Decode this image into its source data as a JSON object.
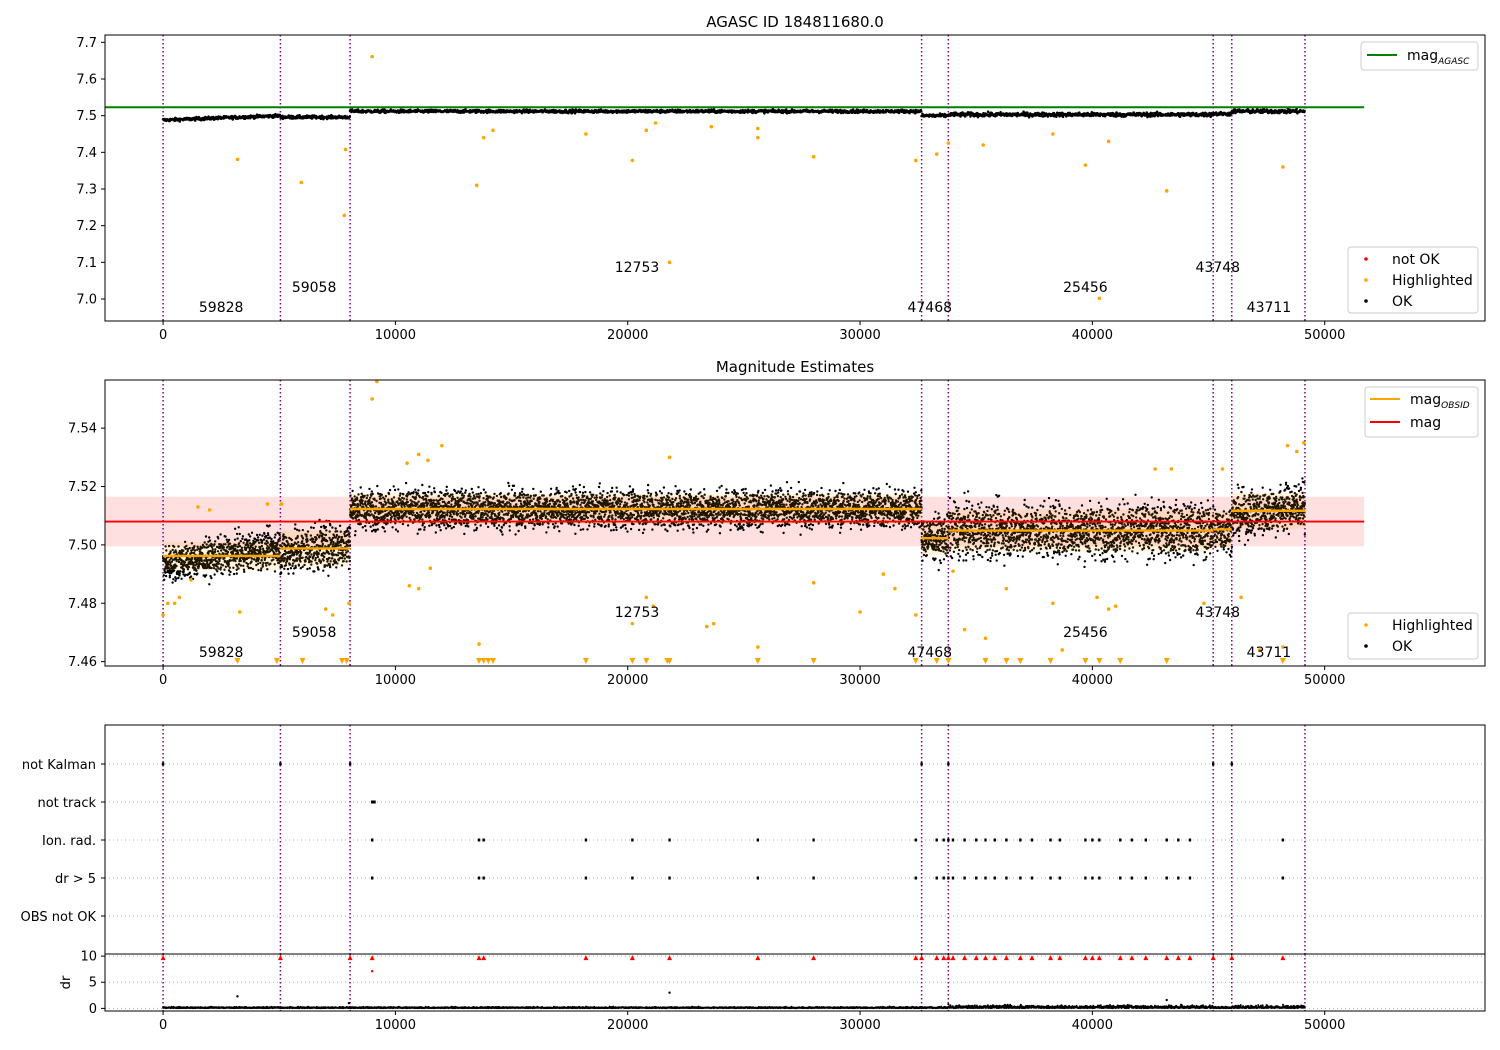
{
  "chart_data": [
    {
      "type": "scatter",
      "title": "AGASC ID 184811680.0",
      "xlim": [
        -2500,
        56900
      ],
      "ylim": [
        6.94,
        7.72
      ],
      "x_ticks": [
        0,
        10000,
        20000,
        30000,
        40000,
        50000
      ],
      "y_ticks": [
        7.0,
        7.1,
        7.2,
        7.3,
        7.4,
        7.5,
        7.6,
        7.7
      ],
      "y_tick_labels": [
        "7.0",
        "7.1",
        "7.2",
        "7.3",
        "7.4",
        "7.5",
        "7.6",
        "7.7"
      ],
      "reference_line": {
        "label": "mag",
        "subscript": "AGASC",
        "value": 7.523,
        "color": "#008000",
        "x_range": [
          -2500,
          51700
        ]
      },
      "legend_top": [
        {
          "label": "mag",
          "subscript": "AGASC",
          "color": "#008000",
          "kind": "line"
        }
      ],
      "legend_bottom": [
        {
          "label": "not OK",
          "color": "#ff0000",
          "kind": "point"
        },
        {
          "label": "Highlighted",
          "color": "#ffa500",
          "kind": "point"
        },
        {
          "label": "OK",
          "color": "#000000",
          "kind": "point"
        }
      ],
      "ok_bands": [
        {
          "x_start": 0,
          "x_end": 5050,
          "y_start": 7.488,
          "y_end": 7.5,
          "spread": 0.006
        },
        {
          "x_start": 5050,
          "x_end": 8050,
          "y_start": 7.496,
          "y_end": 7.496,
          "spread": 0.006
        },
        {
          "x_start": 8050,
          "x_end": 32650,
          "y_start": 7.512,
          "y_end": 7.512,
          "spread": 0.006
        },
        {
          "x_start": 32650,
          "x_end": 33800,
          "y_start": 7.5,
          "y_end": 7.5,
          "spread": 0.007
        },
        {
          "x_start": 33800,
          "x_end": 45200,
          "y_start": 7.503,
          "y_end": 7.503,
          "spread": 0.008
        },
        {
          "x_start": 45200,
          "x_end": 46000,
          "y_start": 7.505,
          "y_end": 7.505,
          "spread": 0.007
        },
        {
          "x_start": 46000,
          "x_end": 49150,
          "y_start": 7.512,
          "y_end": 7.512,
          "spread": 0.008
        }
      ],
      "highlighted_points": [
        [
          3200,
          7.381
        ],
        [
          5950,
          7.318
        ],
        [
          7800,
          7.228
        ],
        [
          7850,
          7.408
        ],
        [
          9000,
          7.661
        ],
        [
          13500,
          7.31
        ],
        [
          13800,
          7.44
        ],
        [
          14200,
          7.46
        ],
        [
          18200,
          7.45
        ],
        [
          20200,
          7.378
        ],
        [
          20800,
          7.46
        ],
        [
          21200,
          7.48
        ],
        [
          21800,
          7.1
        ],
        [
          23600,
          7.47
        ],
        [
          25600,
          7.44
        ],
        [
          25600,
          7.465
        ],
        [
          28000,
          7.388
        ],
        [
          32400,
          7.378
        ],
        [
          33300,
          7.395
        ],
        [
          33800,
          7.425
        ],
        [
          35300,
          7.42
        ],
        [
          38300,
          7.45
        ],
        [
          39700,
          7.365
        ],
        [
          40300,
          7.002
        ],
        [
          40700,
          7.43
        ],
        [
          43200,
          7.295
        ],
        [
          48200,
          7.36
        ]
      ],
      "obsid_labels": [
        {
          "text": "59828",
          "x": 2500,
          "level": 2
        },
        {
          "text": "59058",
          "x": 6500,
          "level": 1
        },
        {
          "text": "12753",
          "x": 20400,
          "level": 0
        },
        {
          "text": "47468",
          "x": 33000,
          "level": 2
        },
        {
          "text": "25456",
          "x": 39700,
          "level": 1
        },
        {
          "text": "43748",
          "x": 45400,
          "level": 0
        },
        {
          "text": "43711",
          "x": 47600,
          "level": 2
        }
      ]
    },
    {
      "type": "scatter",
      "title": "Magnitude Estimates",
      "xlim": [
        -2500,
        56900
      ],
      "ylim": [
        7.4585,
        7.5565
      ],
      "x_ticks": [
        0,
        10000,
        20000,
        30000,
        40000,
        50000
      ],
      "y_ticks": [
        7.46,
        7.48,
        7.5,
        7.52,
        7.54
      ],
      "y_tick_labels": [
        "7.46",
        "7.48",
        "7.50",
        "7.52",
        "7.54"
      ],
      "mag_line": {
        "label": "mag",
        "value": 7.508,
        "band": [
          7.4995,
          7.5165
        ],
        "color": "#ff0000",
        "x_range": [
          -2500,
          51700
        ]
      },
      "legend_top": [
        {
          "label": "mag",
          "subscript": "OBSID",
          "color": "#ffa500",
          "kind": "line"
        },
        {
          "label": "mag",
          "color": "#ff0000",
          "kind": "line"
        }
      ],
      "legend_bottom": [
        {
          "label": "Highlighted",
          "color": "#ffa500",
          "kind": "point"
        },
        {
          "label": "OK",
          "color": "#000000",
          "kind": "point"
        }
      ],
      "obsid_segments": [
        {
          "x_start": 0,
          "x_end": 5050,
          "mag": 7.4962,
          "spread": 0.0048,
          "tilt": 0.006
        },
        {
          "x_start": 5050,
          "x_end": 8050,
          "mag": 7.4988,
          "spread": 0.0062,
          "tilt": 0.003
        },
        {
          "x_start": 8050,
          "x_end": 32650,
          "mag": 7.5123,
          "spread": 0.0052,
          "tilt": 0.0
        },
        {
          "x_start": 32650,
          "x_end": 33800,
          "mag": 7.5023,
          "spread": 0.0058,
          "tilt": 0.0
        },
        {
          "x_start": 33800,
          "x_end": 45200,
          "mag": 7.5049,
          "spread": 0.0072,
          "tilt": 0.0
        },
        {
          "x_start": 45200,
          "x_end": 46000,
          "mag": 7.5053,
          "spread": 0.0062,
          "tilt": 0.0
        },
        {
          "x_start": 46000,
          "x_end": 49150,
          "mag": 7.5117,
          "spread": 0.0062,
          "tilt": 0.004
        }
      ],
      "highlighted_points": [
        [
          0,
          7.476
        ],
        [
          200,
          7.48
        ],
        [
          500,
          7.48
        ],
        [
          700,
          7.482
        ],
        [
          1200,
          7.488
        ],
        [
          3300,
          7.477
        ],
        [
          1500,
          7.513
        ],
        [
          2000,
          7.512
        ],
        [
          4500,
          7.514
        ],
        [
          5100,
          7.514
        ],
        [
          7000,
          7.478
        ],
        [
          7300,
          7.476
        ],
        [
          8000,
          7.48
        ],
        [
          9000,
          7.55
        ],
        [
          9200,
          7.556
        ],
        [
          10500,
          7.528
        ],
        [
          11000,
          7.531
        ],
        [
          11400,
          7.529
        ],
        [
          12000,
          7.534
        ],
        [
          10600,
          7.486
        ],
        [
          11000,
          7.485
        ],
        [
          11500,
          7.492
        ],
        [
          13600,
          7.466
        ],
        [
          20200,
          7.473
        ],
        [
          20800,
          7.482
        ],
        [
          21100,
          7.479
        ],
        [
          21800,
          7.53
        ],
        [
          23400,
          7.472
        ],
        [
          23700,
          7.473
        ],
        [
          25600,
          7.465
        ],
        [
          28000,
          7.487
        ],
        [
          30000,
          7.477
        ],
        [
          31000,
          7.49
        ],
        [
          31500,
          7.485
        ],
        [
          32400,
          7.476
        ],
        [
          34000,
          7.491
        ],
        [
          34500,
          7.471
        ],
        [
          35400,
          7.468
        ],
        [
          36300,
          7.485
        ],
        [
          38300,
          7.48
        ],
        [
          38700,
          7.464
        ],
        [
          40200,
          7.482
        ],
        [
          40700,
          7.478
        ],
        [
          41000,
          7.479
        ],
        [
          42700,
          7.526
        ],
        [
          43400,
          7.526
        ],
        [
          44800,
          7.48
        ],
        [
          45600,
          7.526
        ],
        [
          46400,
          7.482
        ],
        [
          47200,
          7.464
        ],
        [
          48200,
          7.465
        ],
        [
          48400,
          7.534
        ],
        [
          48800,
          7.532
        ],
        [
          49100,
          7.535
        ]
      ],
      "offscale_low_x": [
        3200,
        4900,
        6000,
        7700,
        7900,
        13600,
        13800,
        14000,
        14200,
        18200,
        20200,
        20800,
        21700,
        21800,
        25600,
        28000,
        32400,
        33300,
        33800,
        35400,
        36300,
        36900,
        38200,
        39700,
        40300,
        41200,
        43200,
        48200
      ],
      "obsid_labels": [
        {
          "text": "59828",
          "x": 2500,
          "level": 2
        },
        {
          "text": "59058",
          "x": 6500,
          "level": 1
        },
        {
          "text": "12753",
          "x": 20400,
          "level": 0
        },
        {
          "text": "47468",
          "x": 33000,
          "level": 2
        },
        {
          "text": "25456",
          "x": 39700,
          "level": 1
        },
        {
          "text": "43748",
          "x": 45400,
          "level": 0
        },
        {
          "text": "43711",
          "x": 47600,
          "level": 2
        }
      ]
    },
    {
      "type": "scatter",
      "title": "",
      "xlim": [
        -2500,
        56900
      ],
      "categories": [
        "not Kalman",
        "not track",
        "Ion. rad.",
        "dr > 5",
        "OBS not OK"
      ],
      "flags": {
        "not Kalman": [
          0,
          5050,
          8050,
          32650,
          33800,
          45200,
          46000
        ],
        "not track": [
          9000,
          9050,
          9100
        ],
        "Ion. rad.": [
          9000,
          13600,
          13800,
          18200,
          20200,
          21800,
          25600,
          28000,
          32400,
          33300,
          33600,
          33800,
          34000,
          34500,
          35000,
          35400,
          35800,
          36300,
          36900,
          37400,
          38200,
          38600,
          39700,
          40000,
          40300,
          41200,
          41700,
          42300,
          43200,
          43700,
          44200,
          48200
        ],
        "dr > 5": [
          9000,
          13600,
          13800,
          18200,
          20200,
          21800,
          25600,
          28000,
          32400,
          33300,
          33600,
          33800,
          34000,
          34500,
          35000,
          35400,
          35800,
          36300,
          36900,
          37400,
          38200,
          38600,
          39700,
          40000,
          40300,
          41200,
          41700,
          42300,
          43200,
          43700,
          44200,
          48200
        ],
        "OBS not OK": []
      }
    },
    {
      "type": "scatter",
      "title": "",
      "ylabel": "dr",
      "xlim": [
        -2500,
        56900
      ],
      "ylim": [
        -0.5,
        10.4
      ],
      "x_ticks": [
        0,
        10000,
        20000,
        30000,
        40000,
        50000
      ],
      "y_ticks": [
        0,
        5,
        10
      ],
      "y_tick_labels": [
        "0",
        "5",
        "10"
      ],
      "clipped_dr_x": [
        0,
        5050,
        8050,
        9000,
        13600,
        13800,
        18200,
        20200,
        21800,
        25600,
        28000,
        32400,
        32650,
        33300,
        33600,
        33800,
        34000,
        34500,
        35000,
        35400,
        35800,
        36300,
        36900,
        37400,
        38200,
        38600,
        39700,
        40000,
        40300,
        41200,
        41700,
        42300,
        43200,
        43700,
        44200,
        45200,
        46000,
        48200
      ],
      "outliers": [
        [
          3200,
          2.3
        ],
        [
          9000,
          7.1
        ],
        [
          21800,
          3.0
        ],
        [
          43200,
          1.6
        ],
        [
          8000,
          1.0
        ]
      ]
    }
  ],
  "obsid_boundaries": [
    0,
    5050,
    8050,
    32650,
    33800,
    45200,
    46000,
    49150
  ]
}
